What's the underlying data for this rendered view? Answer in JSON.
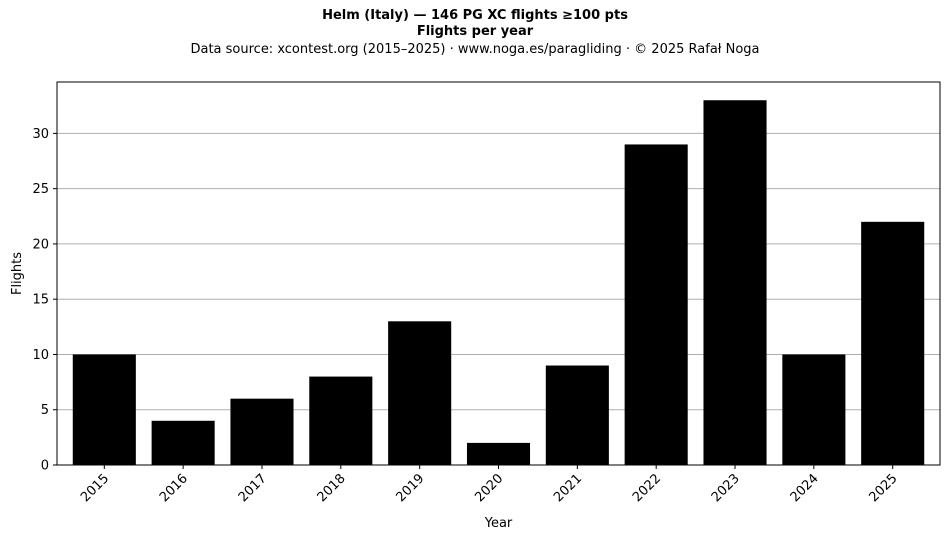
{
  "chart_data": {
    "type": "bar",
    "title": "Helm (Italy)  —  146 PG XC flights ≥100 pts",
    "subtitle": "Flights per year",
    "source_note": "Data source: xcontest.org (2015–2025)  ·  www.noga.es/paragliding  ·  © 2025 Rafał Noga",
    "xlabel": "Year",
    "ylabel": "Flights",
    "categories": [
      "2015",
      "2016",
      "2017",
      "2018",
      "2019",
      "2020",
      "2021",
      "2022",
      "2023",
      "2024",
      "2025"
    ],
    "values": [
      10,
      4,
      6,
      8,
      13,
      2,
      9,
      29,
      33,
      10,
      22
    ],
    "ylim": [
      0,
      34.65
    ],
    "yticks": [
      0,
      5,
      10,
      15,
      20,
      25,
      30
    ],
    "grid": "y",
    "bar_color": "#000000",
    "grid_color": "#b0b0b0"
  }
}
